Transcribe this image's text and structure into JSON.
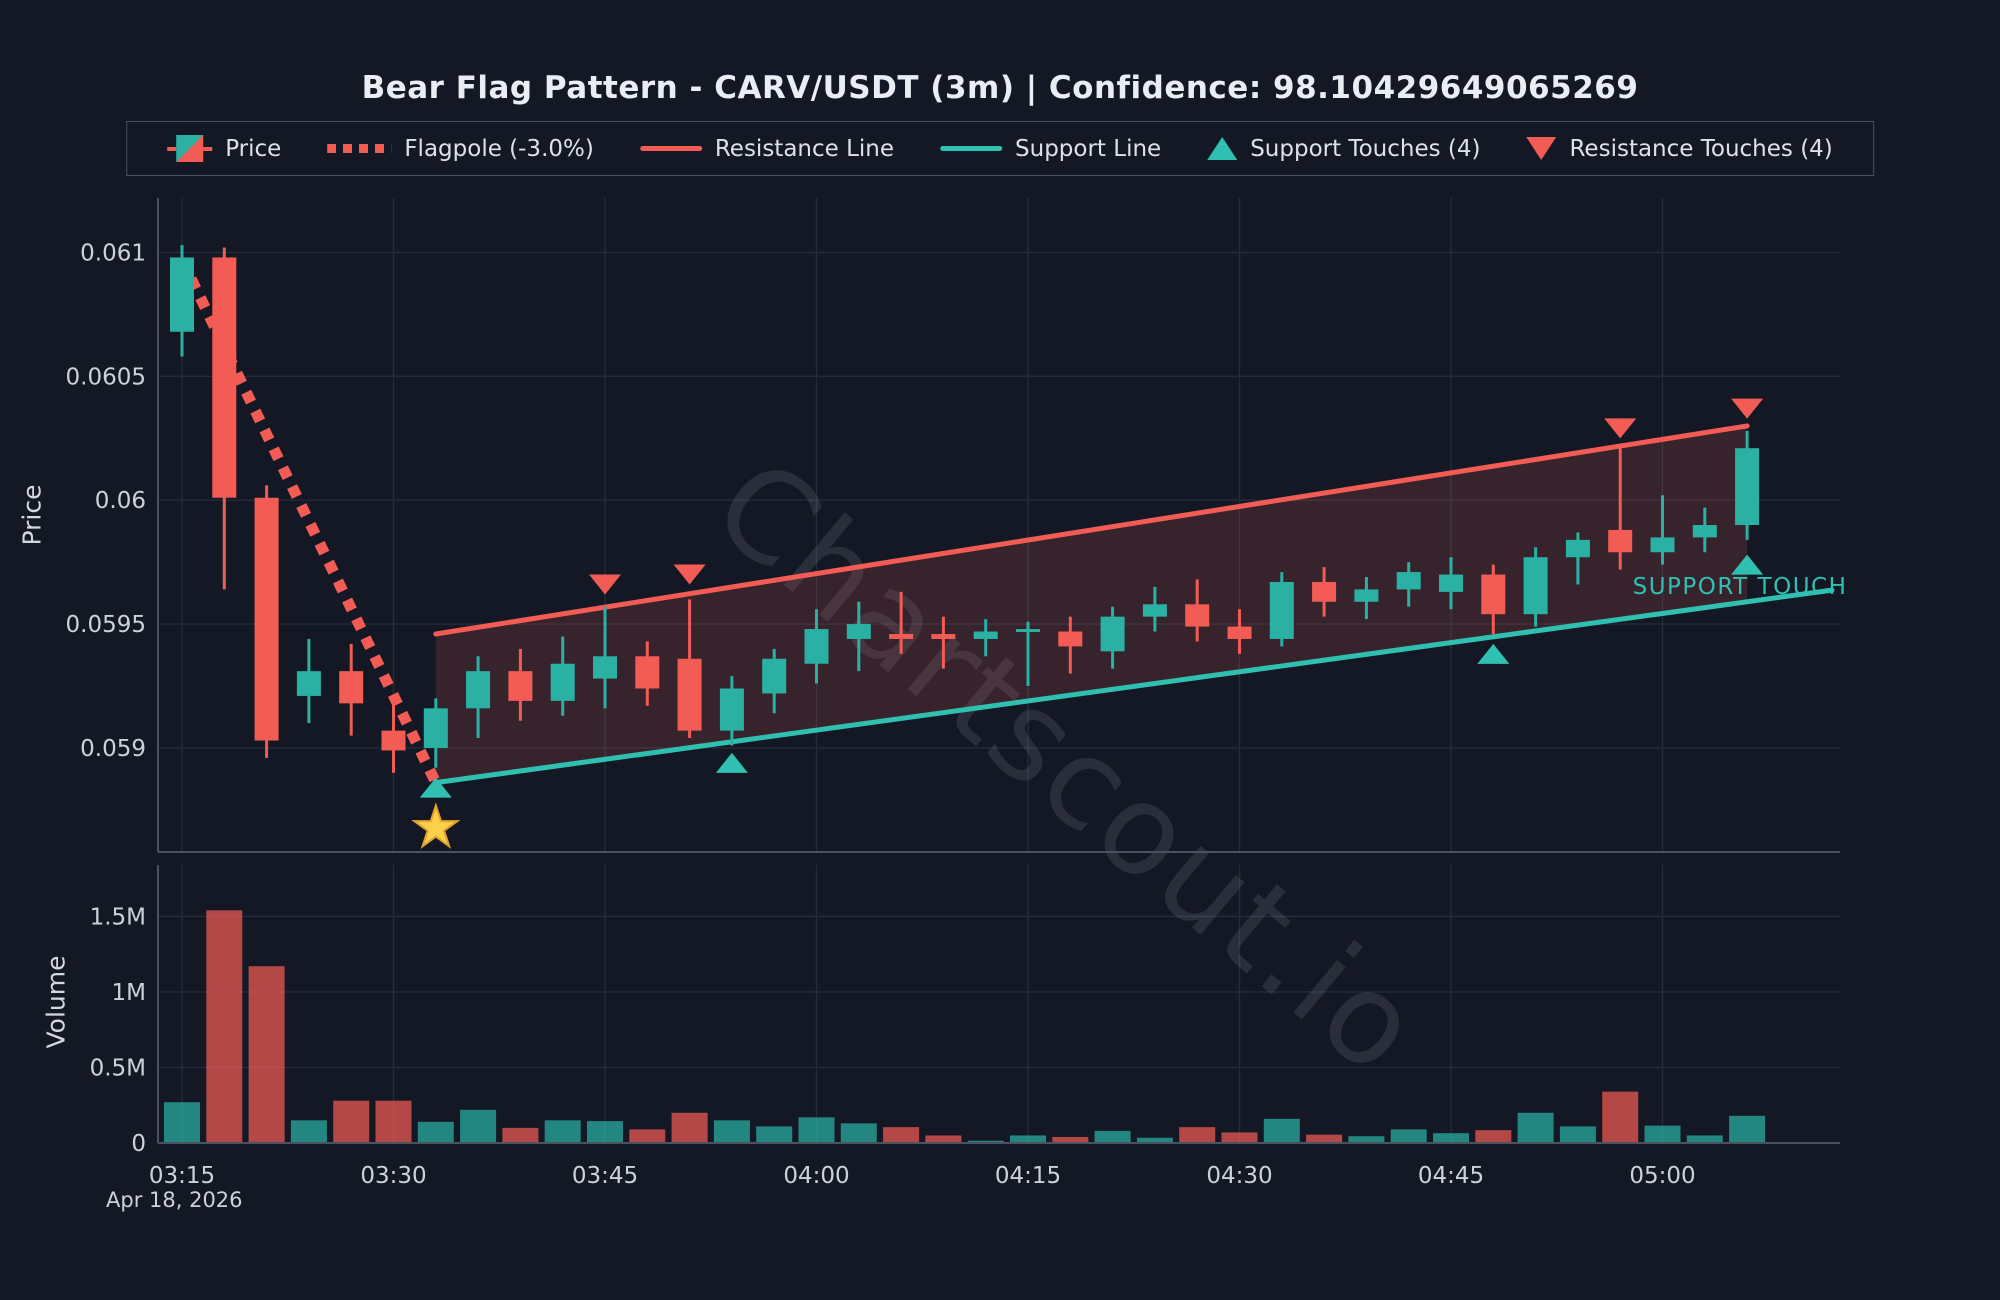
{
  "title": "Bear Flag Pattern - CARV/USDT (3m) | Confidence: 98.10429649065269",
  "legend": {
    "items": [
      {
        "label": "Price",
        "icon": "candlestick-icon"
      },
      {
        "label": "Flagpole (-3.0%)",
        "icon": "dotted-line-icon"
      },
      {
        "label": "Resistance Line",
        "icon": "red-line-icon"
      },
      {
        "label": "Support Line",
        "icon": "teal-line-icon"
      },
      {
        "label": "Support Touches (4)",
        "icon": "triangle-up-icon"
      },
      {
        "label": "Resistance Touches (4)",
        "icon": "triangle-down-icon"
      }
    ]
  },
  "annotations": {
    "support_touch": "SUPPORT TOUCH",
    "watermark": "Chartscout.io"
  },
  "chart_data": {
    "type": "candlestick",
    "pair": "CARV/USDT",
    "interval": "3m",
    "pattern": "Bear Flag",
    "confidence": "98.10429649065269",
    "date_label": "Apr 18, 2026",
    "price_axis": {
      "title": "Price",
      "ticks": [
        {
          "label": "0.061",
          "value": 0.061
        },
        {
          "label": "0.0605",
          "value": 0.0605
        },
        {
          "label": "0.06",
          "value": 0.06
        },
        {
          "label": "0.0595",
          "value": 0.0595
        },
        {
          "label": "0.059",
          "value": 0.059
        }
      ]
    },
    "volume_axis": {
      "title": "Volume",
      "unit": "M",
      "ticks": [
        {
          "label": "0",
          "value": 0
        },
        {
          "label": "0.5M",
          "value": 0.5
        },
        {
          "label": "1M",
          "value": 1
        },
        {
          "label": "1.5M",
          "value": 1.5
        }
      ]
    },
    "time_axis": {
      "date_label": "Apr 18, 2026",
      "ticks": [
        {
          "label": "03:15",
          "index": 0
        },
        {
          "label": "03:30",
          "index": 5
        },
        {
          "label": "03:45",
          "index": 10
        },
        {
          "label": "04:00",
          "index": 15
        },
        {
          "label": "04:15",
          "index": 20
        },
        {
          "label": "04:30",
          "index": 25
        },
        {
          "label": "04:45",
          "index": 30
        },
        {
          "label": "05:00",
          "index": 35
        }
      ]
    },
    "price_axis_range": [
      0.05858,
      0.06122
    ],
    "volume_axis_range": [
      0,
      1.84
    ],
    "candles": [
      {
        "t": "03:15",
        "o": 0.06068,
        "h": 0.06103,
        "l": 0.06058,
        "c": 0.06098,
        "v": 0.27
      },
      {
        "t": "03:18",
        "o": 0.06098,
        "h": 0.06102,
        "l": 0.05964,
        "c": 0.06001,
        "v": 1.54
      },
      {
        "t": "03:21",
        "o": 0.06001,
        "h": 0.06006,
        "l": 0.05896,
        "c": 0.05903,
        "v": 1.17
      },
      {
        "t": "03:24",
        "o": 0.05921,
        "h": 0.05944,
        "l": 0.0591,
        "c": 0.05931,
        "v": 0.15
      },
      {
        "t": "03:27",
        "o": 0.05931,
        "h": 0.05942,
        "l": 0.05905,
        "c": 0.05918,
        "v": 0.28
      },
      {
        "t": "03:30",
        "o": 0.05907,
        "h": 0.05918,
        "l": 0.0589,
        "c": 0.05899,
        "v": 0.28
      },
      {
        "t": "03:33",
        "o": 0.059,
        "h": 0.0592,
        "l": 0.05892,
        "c": 0.05916,
        "v": 0.14
      },
      {
        "t": "03:36",
        "o": 0.05916,
        "h": 0.05937,
        "l": 0.05904,
        "c": 0.05931,
        "v": 0.22
      },
      {
        "t": "03:39",
        "o": 0.05931,
        "h": 0.0594,
        "l": 0.05911,
        "c": 0.05919,
        "v": 0.1
      },
      {
        "t": "03:42",
        "o": 0.05919,
        "h": 0.05945,
        "l": 0.05913,
        "c": 0.05934,
        "v": 0.15
      },
      {
        "t": "03:45",
        "o": 0.05928,
        "h": 0.05957,
        "l": 0.05916,
        "c": 0.05937,
        "v": 0.145
      },
      {
        "t": "03:48",
        "o": 0.05937,
        "h": 0.05943,
        "l": 0.05917,
        "c": 0.05924,
        "v": 0.09
      },
      {
        "t": "03:51",
        "o": 0.05936,
        "h": 0.0596,
        "l": 0.05904,
        "c": 0.05907,
        "v": 0.2
      },
      {
        "t": "03:54",
        "o": 0.05907,
        "h": 0.05929,
        "l": 0.05901,
        "c": 0.05924,
        "v": 0.15
      },
      {
        "t": "03:57",
        "o": 0.05922,
        "h": 0.0594,
        "l": 0.05914,
        "c": 0.05936,
        "v": 0.11
      },
      {
        "t": "04:00",
        "o": 0.05934,
        "h": 0.05956,
        "l": 0.05926,
        "c": 0.05948,
        "v": 0.17
      },
      {
        "t": "04:03",
        "o": 0.05944,
        "h": 0.05959,
        "l": 0.05931,
        "c": 0.0595,
        "v": 0.13
      },
      {
        "t": "04:06",
        "o": 0.05946,
        "h": 0.05963,
        "l": 0.05938,
        "c": 0.05944,
        "v": 0.105
      },
      {
        "t": "04:09",
        "o": 0.05946,
        "h": 0.05953,
        "l": 0.05932,
        "c": 0.05944,
        "v": 0.05
      },
      {
        "t": "04:12",
        "o": 0.05944,
        "h": 0.05952,
        "l": 0.05937,
        "c": 0.05947,
        "v": 0.015
      },
      {
        "t": "04:15",
        "o": 0.05948,
        "h": 0.05951,
        "l": 0.05925,
        "c": 0.05948,
        "v": 0.05
      },
      {
        "t": "04:18",
        "o": 0.05947,
        "h": 0.05953,
        "l": 0.0593,
        "c": 0.05941,
        "v": 0.04
      },
      {
        "t": "04:21",
        "o": 0.05939,
        "h": 0.05957,
        "l": 0.05932,
        "c": 0.05953,
        "v": 0.08
      },
      {
        "t": "04:24",
        "o": 0.05953,
        "h": 0.05965,
        "l": 0.05947,
        "c": 0.05958,
        "v": 0.035
      },
      {
        "t": "04:27",
        "o": 0.05958,
        "h": 0.05968,
        "l": 0.05943,
        "c": 0.05949,
        "v": 0.105
      },
      {
        "t": "04:30",
        "o": 0.05949,
        "h": 0.05956,
        "l": 0.05938,
        "c": 0.05944,
        "v": 0.07
      },
      {
        "t": "04:33",
        "o": 0.05944,
        "h": 0.05971,
        "l": 0.05941,
        "c": 0.05967,
        "v": 0.16
      },
      {
        "t": "04:36",
        "o": 0.05967,
        "h": 0.05973,
        "l": 0.05953,
        "c": 0.05959,
        "v": 0.055
      },
      {
        "t": "04:39",
        "o": 0.05959,
        "h": 0.05969,
        "l": 0.05952,
        "c": 0.05964,
        "v": 0.045
      },
      {
        "t": "04:42",
        "o": 0.05964,
        "h": 0.05975,
        "l": 0.05957,
        "c": 0.05971,
        "v": 0.09
      },
      {
        "t": "04:45",
        "o": 0.05963,
        "h": 0.05977,
        "l": 0.05956,
        "c": 0.0597,
        "v": 0.065
      },
      {
        "t": "04:48",
        "o": 0.0597,
        "h": 0.05974,
        "l": 0.05946,
        "c": 0.05954,
        "v": 0.085
      },
      {
        "t": "04:51",
        "o": 0.05954,
        "h": 0.05981,
        "l": 0.05949,
        "c": 0.05977,
        "v": 0.2
      },
      {
        "t": "04:54",
        "o": 0.05977,
        "h": 0.05987,
        "l": 0.05966,
        "c": 0.05984,
        "v": 0.11
      },
      {
        "t": "04:57",
        "o": 0.05988,
        "h": 0.06021,
        "l": 0.05972,
        "c": 0.05979,
        "v": 0.34
      },
      {
        "t": "05:00",
        "o": 0.05979,
        "h": 0.06002,
        "l": 0.05974,
        "c": 0.05985,
        "v": 0.115
      },
      {
        "t": "05:03",
        "o": 0.05985,
        "h": 0.05997,
        "l": 0.05979,
        "c": 0.0599,
        "v": 0.05
      },
      {
        "t": "05:06",
        "o": 0.0599,
        "h": 0.06028,
        "l": 0.05984,
        "c": 0.06021,
        "v": 0.18
      }
    ],
    "flagpole": {
      "from_index": 0,
      "from_price": 0.06097,
      "to_index": 6,
      "to_price": 0.05886,
      "change_pct": -3.0
    },
    "flag": {
      "start_index": 6,
      "end_index": 37,
      "resistance": {
        "from_price": 0.05946,
        "to_price": 0.0603
      },
      "support": {
        "from_price": 0.05886,
        "to_price": 0.05959
      }
    },
    "support_touches": [
      {
        "index": 6,
        "price": 0.05884
      },
      {
        "index": 13,
        "price": 0.05894
      },
      {
        "index": 31,
        "price": 0.05938
      },
      {
        "index": 37,
        "price": 0.05974
      }
    ],
    "resistance_touches": [
      {
        "index": 10,
        "price": 0.05966
      },
      {
        "index": 12,
        "price": 0.0597
      },
      {
        "index": 34,
        "price": 0.06029
      },
      {
        "index": 37,
        "price": 0.06037
      }
    ],
    "star": {
      "index": 6,
      "price": 0.05868
    },
    "colors": {
      "up": "#2bb1a4",
      "down": "#f25c55",
      "support_line": "#2fc0b1",
      "resistance_line": "#f25c55",
      "flagpole": "#f25c55",
      "flag_fill": "rgba(242,92,85,0.16)",
      "background": "#141824",
      "grid": "#242b3b",
      "spine": "#4a5161",
      "tick_text": "#ccd1db",
      "title_text": "#e9edf4",
      "watermark": "#9aa0b0",
      "star": "#fdd04a",
      "star_stroke": "#e0a32e"
    }
  }
}
